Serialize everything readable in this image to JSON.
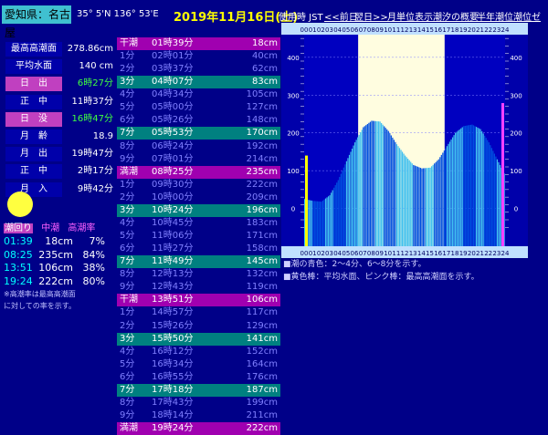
{
  "header": {
    "location": "愛知県：名古屋",
    "coords": "35° 5'N 136° 53'E",
    "date": "2019年11月16日(土)",
    "tz": "使用時 JST",
    "nav": [
      "<<前日",
      "翌日>>",
      "月単位表示",
      "潮汐の概要",
      "半年潮位",
      "潮位ゼロ"
    ]
  },
  "info": [
    {
      "label": "最高高潮面",
      "value": "278.86cm",
      "label_style": "blue",
      "value_style": "white"
    },
    {
      "label": "平均水面",
      "value": "140 cm",
      "label_style": "blue",
      "value_style": "white"
    },
    {
      "label": "日　出",
      "value": "6時27分",
      "label_style": "mag",
      "value_style": "green"
    },
    {
      "label": "正　中",
      "value": "11時37分",
      "label_style": "blue",
      "value_style": "white"
    },
    {
      "label": "日　没",
      "value": "16時47分",
      "label_style": "mag",
      "value_style": "green"
    },
    {
      "label": "月　齢",
      "value": "18.9",
      "label_style": "blue",
      "value_style": "white"
    },
    {
      "label": "月　出",
      "value": "19時47分",
      "label_style": "blue",
      "value_style": "white"
    },
    {
      "label": "正　中",
      "value": "2時17分",
      "label_style": "blue",
      "value_style": "white"
    },
    {
      "label": "月　入",
      "value": "9時42分",
      "label_style": "blue",
      "value_style": "white"
    }
  ],
  "moon_color": "#ffff40",
  "tide_summary": {
    "headers": [
      "潮回り",
      "中潮",
      "高潮率"
    ],
    "rows": [
      {
        "time": "01:39",
        "height": "18cm",
        "rate": "7%"
      },
      {
        "time": "08:25",
        "height": "235cm",
        "rate": "84%"
      },
      {
        "time": "13:51",
        "height": "106cm",
        "rate": "38%"
      },
      {
        "time": "19:24",
        "height": "222cm",
        "rate": "80%"
      }
    ],
    "note_line1": "※高潮率は最高高潮面",
    "note_line2": "に対しての率を示す。"
  },
  "tide_table": [
    {
      "a": "干潮",
      "b": "01時39分",
      "c": "18cm",
      "kind": "mag"
    },
    {
      "a": "1分",
      "b": "02時01分",
      "c": "40cm",
      "kind": "plain"
    },
    {
      "a": "2分",
      "b": "03時37分",
      "c": "62cm",
      "kind": "plain"
    },
    {
      "a": "3分",
      "b": "04時07分",
      "c": "83cm",
      "kind": "teal"
    },
    {
      "a": "4分",
      "b": "04時34分",
      "c": "105cm",
      "kind": "plain"
    },
    {
      "a": "5分",
      "b": "05時00分",
      "c": "127cm",
      "kind": "plain"
    },
    {
      "a": "6分",
      "b": "05時26分",
      "c": "148cm",
      "kind": "plain"
    },
    {
      "a": "7分",
      "b": "05時53分",
      "c": "170cm",
      "kind": "teal"
    },
    {
      "a": "8分",
      "b": "06時24分",
      "c": "192cm",
      "kind": "plain"
    },
    {
      "a": "9分",
      "b": "07時01分",
      "c": "214cm",
      "kind": "plain"
    },
    {
      "a": "満潮",
      "b": "08時25分",
      "c": "235cm",
      "kind": "mag"
    },
    {
      "a": "1分",
      "b": "09時30分",
      "c": "222cm",
      "kind": "plain"
    },
    {
      "a": "2分",
      "b": "10時00分",
      "c": "209cm",
      "kind": "plain"
    },
    {
      "a": "3分",
      "b": "10時24分",
      "c": "196cm",
      "kind": "teal"
    },
    {
      "a": "4分",
      "b": "10時45分",
      "c": "183cm",
      "kind": "plain"
    },
    {
      "a": "5分",
      "b": "11時06分",
      "c": "171cm",
      "kind": "plain"
    },
    {
      "a": "6分",
      "b": "11時27分",
      "c": "158cm",
      "kind": "plain"
    },
    {
      "a": "7分",
      "b": "11時49分",
      "c": "145cm",
      "kind": "teal"
    },
    {
      "a": "8分",
      "b": "12時13分",
      "c": "132cm",
      "kind": "plain"
    },
    {
      "a": "9分",
      "b": "12時43分",
      "c": "119cm",
      "kind": "plain"
    },
    {
      "a": "干潮",
      "b": "13時51分",
      "c": "106cm",
      "kind": "mag"
    },
    {
      "a": "1分",
      "b": "14時57分",
      "c": "117cm",
      "kind": "plain"
    },
    {
      "a": "2分",
      "b": "15時26分",
      "c": "129cm",
      "kind": "plain"
    },
    {
      "a": "3分",
      "b": "15時50分",
      "c": "141cm",
      "kind": "teal"
    },
    {
      "a": "4分",
      "b": "16時12分",
      "c": "152cm",
      "kind": "plain"
    },
    {
      "a": "5分",
      "b": "16時34分",
      "c": "164cm",
      "kind": "plain"
    },
    {
      "a": "6分",
      "b": "16時55分",
      "c": "176cm",
      "kind": "plain"
    },
    {
      "a": "7分",
      "b": "17時18分",
      "c": "187cm",
      "kind": "teal"
    },
    {
      "a": "8分",
      "b": "17時43分",
      "c": "199cm",
      "kind": "plain"
    },
    {
      "a": "9分",
      "b": "18時14分",
      "c": "211cm",
      "kind": "plain"
    },
    {
      "a": "満潮",
      "b": "19時24分",
      "c": "222cm",
      "kind": "mag"
    }
  ],
  "legend": {
    "line1": "■潮の青色：2～4分、6～8分を示す。",
    "line2": "■黄色棒：平均水面、ピンク棒：最高高潮面を示す。"
  },
  "colors": {
    "background": "#000088",
    "table_magenta": "#a000b0",
    "table_teal": "#008080",
    "daylight": "#fffde0",
    "bar_light": "#40c0f0",
    "bar_dark": "#0050e0",
    "mean_bar": "#ffff00",
    "max_bar": "#ff40ff"
  },
  "chart_data": {
    "type": "bar",
    "x": [
      0,
      1,
      2,
      3,
      4,
      5,
      6,
      7,
      8,
      9,
      10,
      11,
      12,
      13,
      14,
      15,
      16,
      17,
      18,
      19,
      20,
      21,
      22,
      23,
      24
    ],
    "hour_labels": [
      "00",
      "01",
      "02",
      "03",
      "04",
      "05",
      "06",
      "07",
      "08",
      "09",
      "10",
      "11",
      "12",
      "13",
      "14",
      "15",
      "16",
      "17",
      "18",
      "19",
      "20",
      "21",
      "22",
      "23",
      "24"
    ],
    "values": [
      25,
      20,
      18,
      35,
      75,
      125,
      175,
      215,
      232,
      230,
      205,
      170,
      140,
      115,
      106,
      108,
      130,
      165,
      200,
      218,
      222,
      210,
      175,
      130,
      85
    ],
    "ylim": [
      -100,
      460
    ],
    "yticks": [
      0,
      100,
      200,
      300,
      400
    ],
    "daylight_hours": [
      6.45,
      16.78
    ],
    "mean_level": 140,
    "max_level": 278.86
  }
}
